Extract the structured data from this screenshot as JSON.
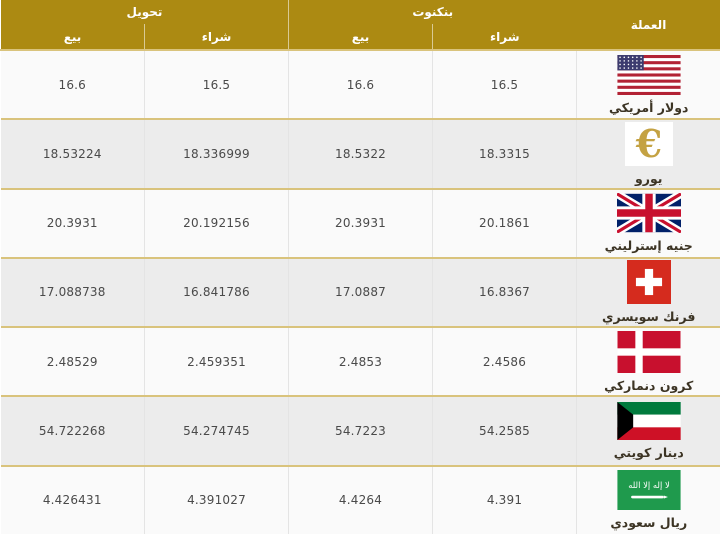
{
  "table": {
    "header": {
      "currency": "العملة",
      "banknote": "بنكنوت",
      "transfer": "تحويل",
      "buy": "شراء",
      "sell": "بيع"
    },
    "rows": [
      {
        "name": "دولار أمريكي",
        "flag": "us-flag-icon",
        "banknote_buy": "16.5",
        "banknote_sell": "16.6",
        "transfer_buy": "16.5",
        "transfer_sell": "16.6"
      },
      {
        "name": "يورو",
        "flag": "euro-sign-icon",
        "banknote_buy": "18.3315",
        "banknote_sell": "18.5322",
        "transfer_buy": "18.336999",
        "transfer_sell": "18.53224"
      },
      {
        "name": "جنيه إسترليني",
        "flag": "uk-flag-icon",
        "banknote_buy": "20.1861",
        "banknote_sell": "20.3931",
        "transfer_buy": "20.192156",
        "transfer_sell": "20.3931"
      },
      {
        "name": "فرنك سويسري",
        "flag": "swiss-flag-icon",
        "banknote_buy": "16.8367",
        "banknote_sell": "17.0887",
        "transfer_buy": "16.841786",
        "transfer_sell": "17.088738"
      },
      {
        "name": "كرون دنماركي",
        "flag": "danish-flag-icon",
        "banknote_buy": "2.4586",
        "banknote_sell": "2.4853",
        "transfer_buy": "2.459351",
        "transfer_sell": "2.48529"
      },
      {
        "name": "دينار كويتي",
        "flag": "kuwait-flag-icon",
        "banknote_buy": "54.2585",
        "banknote_sell": "54.7223",
        "transfer_buy": "54.274745",
        "transfer_sell": "54.722268"
      },
      {
        "name": "ريال سعودي",
        "flag": "saudi-flag-icon",
        "banknote_buy": "4.391",
        "banknote_sell": "4.4264",
        "transfer_buy": "4.391027",
        "transfer_sell": "4.426431"
      }
    ]
  },
  "colors": {
    "header_bg": "#AC8A12",
    "row_separator": "#D9C37C",
    "row_bg": "#FAFAFA",
    "row_alt_bg": "#ECECEC",
    "euro_gold": "#C4A243"
  }
}
